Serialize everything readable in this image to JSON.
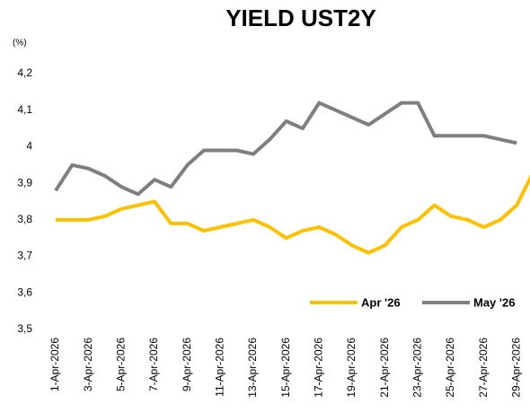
{
  "chart_data": {
    "type": "line",
    "title": "YIELD UST2Y",
    "y_label": "(%)",
    "categories": [
      "1-Apr-2026",
      null,
      "3-Apr-2026",
      null,
      "5-Apr-2026",
      null,
      "7-Apr-2026",
      null,
      "9-Apr-2026",
      null,
      "11-Apr-2026",
      null,
      "13-Apr-2026",
      null,
      "15-Apr-2026",
      null,
      "17-Apr-2026",
      null,
      "19-Apr-2026",
      null,
      "21-Apr-2026",
      null,
      "23-Apr-2026",
      null,
      "25-Apr-2026",
      null,
      "27-Apr-2026",
      null,
      "29-Apr-2026",
      null
    ],
    "series": [
      {
        "name": "Apr '26",
        "color": "#ffc000",
        "values": [
          3.8,
          3.8,
          3.8,
          3.81,
          3.83,
          3.84,
          3.85,
          3.79,
          3.79,
          3.77,
          3.78,
          3.79,
          3.8,
          3.78,
          3.75,
          3.77,
          3.78,
          3.76,
          3.73,
          3.71,
          3.73,
          3.78,
          3.8,
          3.84,
          3.81,
          3.8,
          3.78,
          3.8,
          3.84,
          3.93
        ]
      },
      {
        "name": "May '26",
        "color": "#7f7f7f",
        "values": [
          3.88,
          3.95,
          3.94,
          3.92,
          3.89,
          3.87,
          3.91,
          3.89,
          3.95,
          3.99,
          3.99,
          3.99,
          3.98,
          4.02,
          4.07,
          4.05,
          4.12,
          4.1,
          4.08,
          4.06,
          4.09,
          4.12,
          4.12,
          4.03,
          4.03,
          4.03,
          4.03,
          4.02,
          4.01,
          null
        ]
      }
    ],
    "ylim": [
      3.5,
      4.2
    ],
    "yticks": [
      {
        "value": 3.5,
        "label": "3,5"
      },
      {
        "value": 3.6,
        "label": "3,6"
      },
      {
        "value": 3.7,
        "label": "3,7"
      },
      {
        "value": 3.8,
        "label": "3,8"
      },
      {
        "value": 3.9,
        "label": "3,9"
      },
      4,
      {
        "value": 4.1,
        "label": "4,1"
      },
      {
        "value": 4.2,
        "label": "4,2"
      }
    ],
    "grid": false,
    "legend": "lower right"
  }
}
